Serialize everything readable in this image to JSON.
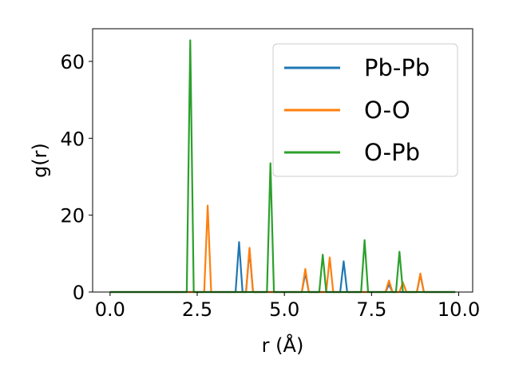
{
  "chart_data": {
    "type": "line",
    "title": "",
    "xlabel": "r (Å)",
    "ylabel": "g(r)",
    "xlim": [
      -0.5,
      10.4
    ],
    "ylim": [
      0,
      68.5
    ],
    "xticks": [
      0.0,
      2.5,
      5.0,
      7.5,
      10.0
    ],
    "xtick_labels": [
      "0.0",
      "2.5",
      "5.0",
      "7.5",
      "10.0"
    ],
    "yticks": [
      0,
      20,
      40,
      60
    ],
    "ytick_labels": [
      "0",
      "20",
      "40",
      "60"
    ],
    "grid": false,
    "legend_position": "top-right",
    "x_range": [
      0.0,
      9.9
    ],
    "x_step": 0.1,
    "series": [
      {
        "name": "Pb-Pb",
        "color": "#1f77b4",
        "peaks": [
          {
            "x": 3.7,
            "y": 13.0
          },
          {
            "x": 4.0,
            "y": 11.0
          },
          {
            "x": 5.6,
            "y": 5.0
          },
          {
            "x": 6.7,
            "y": 8.0
          },
          {
            "x": 8.0,
            "y": 2.0
          },
          {
            "x": 8.9,
            "y": 4.5
          }
        ]
      },
      {
        "name": "O-O",
        "color": "#ff7f0e",
        "peaks": [
          {
            "x": 2.8,
            "y": 22.5
          },
          {
            "x": 4.0,
            "y": 11.5
          },
          {
            "x": 5.6,
            "y": 6.0
          },
          {
            "x": 6.3,
            "y": 9.0
          },
          {
            "x": 8.0,
            "y": 3.0
          },
          {
            "x": 8.4,
            "y": 2.5
          },
          {
            "x": 8.9,
            "y": 4.8
          }
        ]
      },
      {
        "name": "O-Pb",
        "color": "#2ca02c",
        "peaks": [
          {
            "x": 2.3,
            "y": 65.5
          },
          {
            "x": 4.6,
            "y": 33.5
          },
          {
            "x": 6.1,
            "y": 9.7
          },
          {
            "x": 7.3,
            "y": 13.5
          },
          {
            "x": 8.3,
            "y": 10.5
          }
        ]
      }
    ]
  }
}
